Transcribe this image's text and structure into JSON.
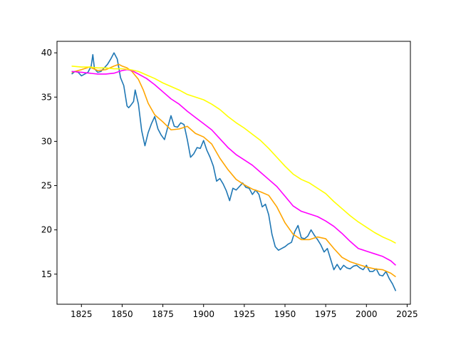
{
  "chart_data": {
    "type": "line",
    "title": "",
    "xlabel": "",
    "ylabel": "",
    "xlim": [
      1810,
      2027
    ],
    "ylim": [
      11.6,
      41.3
    ],
    "grid": false,
    "x_ticks": [
      1825,
      1850,
      1875,
      1900,
      1925,
      1950,
      1975,
      2000,
      2025
    ],
    "y_ticks": [
      15,
      20,
      25,
      30,
      35,
      40
    ],
    "series": [
      {
        "color": "#1f77b4",
        "x": [
          1819,
          1821,
          1823,
          1825,
          1827,
          1829,
          1831,
          1832,
          1833,
          1835,
          1837,
          1839,
          1841,
          1843,
          1845,
          1847,
          1849,
          1851,
          1853,
          1854,
          1855,
          1857,
          1858,
          1860,
          1862,
          1864,
          1866,
          1868,
          1870,
          1872,
          1874,
          1876,
          1878,
          1880,
          1882,
          1884,
          1886,
          1888,
          1890,
          1892,
          1894,
          1896,
          1898,
          1900,
          1902,
          1904,
          1906,
          1908,
          1910,
          1912,
          1914,
          1916,
          1918,
          1920,
          1922,
          1924,
          1926,
          1928,
          1930,
          1932,
          1934,
          1936,
          1938,
          1940,
          1942,
          1944,
          1946,
          1948,
          1950,
          1952,
          1954,
          1956,
          1958,
          1960,
          1962,
          1964,
          1966,
          1968,
          1970,
          1972,
          1974,
          1976,
          1978,
          1980,
          1982,
          1984,
          1986,
          1988,
          1990,
          1992,
          1994,
          1996,
          1998,
          2000,
          2002,
          2004,
          2006,
          2008,
          2010,
          2012,
          2014,
          2016,
          2018
        ],
        "values": [
          37.6,
          37.9,
          37.8,
          37.4,
          37.6,
          37.8,
          38.5,
          39.8,
          38.2,
          37.8,
          37.9,
          38.3,
          38.7,
          39.3,
          40.0,
          39.3,
          37.2,
          36.3,
          34.0,
          33.8,
          34.0,
          34.5,
          35.8,
          34.2,
          31.2,
          29.5,
          31.0,
          32.0,
          32.8,
          31.4,
          30.7,
          30.2,
          31.6,
          32.9,
          31.7,
          31.6,
          32.1,
          31.9,
          30.2,
          28.2,
          28.6,
          29.3,
          29.2,
          30.1,
          29.0,
          28.2,
          27.2,
          25.5,
          25.8,
          25.2,
          24.4,
          23.3,
          24.7,
          24.5,
          24.9,
          25.3,
          24.8,
          24.7,
          24.0,
          24.5,
          24.0,
          22.6,
          22.9,
          21.7,
          19.5,
          18.1,
          17.7,
          17.9,
          18.1,
          18.4,
          18.6,
          19.8,
          20.5,
          19.1,
          19.0,
          19.3,
          20.0,
          19.4,
          18.9,
          18.3,
          17.5,
          17.9,
          16.7,
          15.5,
          16.1,
          15.5,
          16.0,
          15.7,
          15.6,
          15.9,
          16.0,
          15.7,
          15.5,
          16.0,
          15.3,
          15.3,
          15.6,
          14.9,
          14.8,
          15.3,
          14.5,
          13.9,
          13.1
        ]
      },
      {
        "color": "#ffa500",
        "x": [
          1819,
          1825,
          1830,
          1835,
          1840,
          1845,
          1848,
          1850,
          1853,
          1856,
          1860,
          1863,
          1866,
          1870,
          1875,
          1880,
          1885,
          1890,
          1895,
          1900,
          1905,
          1910,
          1915,
          1920,
          1925,
          1930,
          1935,
          1940,
          1945,
          1950,
          1955,
          1960,
          1965,
          1970,
          1975,
          1980,
          1985,
          1990,
          1995,
          2000,
          2005,
          2010,
          2015,
          2018
        ],
        "values": [
          37.8,
          38.1,
          38.4,
          38.0,
          38.1,
          38.5,
          38.7,
          38.5,
          38.3,
          37.9,
          37.0,
          35.8,
          34.3,
          33.0,
          32.2,
          31.3,
          31.4,
          31.7,
          30.9,
          30.5,
          29.7,
          28.1,
          26.8,
          25.7,
          25.1,
          24.6,
          24.3,
          23.9,
          22.6,
          20.8,
          19.5,
          18.9,
          18.9,
          19.2,
          19.0,
          17.9,
          16.9,
          16.4,
          16.1,
          15.8,
          15.6,
          15.5,
          15.1,
          14.7
        ]
      },
      {
        "color": "#ff00ff",
        "x": [
          1819,
          1825,
          1830,
          1835,
          1840,
          1845,
          1850,
          1853,
          1856,
          1860,
          1865,
          1870,
          1875,
          1880,
          1885,
          1890,
          1895,
          1900,
          1905,
          1910,
          1915,
          1920,
          1925,
          1930,
          1935,
          1940,
          1945,
          1950,
          1955,
          1960,
          1965,
          1970,
          1975,
          1980,
          1985,
          1990,
          1995,
          2000,
          2005,
          2010,
          2015,
          2018
        ],
        "values": [
          37.9,
          37.8,
          37.7,
          37.6,
          37.6,
          37.7,
          38.0,
          38.1,
          38.0,
          37.6,
          37.1,
          36.4,
          35.6,
          34.8,
          34.2,
          33.4,
          32.7,
          32.0,
          31.3,
          30.3,
          29.3,
          28.5,
          27.9,
          27.3,
          26.5,
          25.7,
          24.9,
          23.8,
          22.7,
          22.1,
          21.8,
          21.5,
          21.0,
          20.4,
          19.6,
          18.7,
          17.9,
          17.6,
          17.3,
          17.0,
          16.5,
          16.0
        ]
      },
      {
        "color": "#ffff00",
        "x": [
          1819,
          1825,
          1830,
          1835,
          1840,
          1845,
          1850,
          1855,
          1860,
          1865,
          1870,
          1875,
          1880,
          1885,
          1890,
          1895,
          1900,
          1905,
          1910,
          1915,
          1920,
          1925,
          1930,
          1935,
          1940,
          1945,
          1950,
          1955,
          1960,
          1965,
          1970,
          1975,
          1980,
          1985,
          1990,
          1995,
          2000,
          2005,
          2010,
          2015,
          2018
        ],
        "values": [
          38.5,
          38.4,
          38.4,
          38.3,
          38.3,
          38.2,
          38.2,
          38.1,
          37.9,
          37.5,
          37.1,
          36.6,
          36.2,
          35.8,
          35.3,
          35.0,
          34.7,
          34.2,
          33.6,
          32.8,
          32.1,
          31.5,
          30.8,
          30.1,
          29.2,
          28.2,
          27.2,
          26.3,
          25.7,
          25.3,
          24.7,
          24.1,
          23.2,
          22.4,
          21.6,
          20.9,
          20.3,
          19.7,
          19.2,
          18.8,
          18.5
        ]
      }
    ]
  }
}
